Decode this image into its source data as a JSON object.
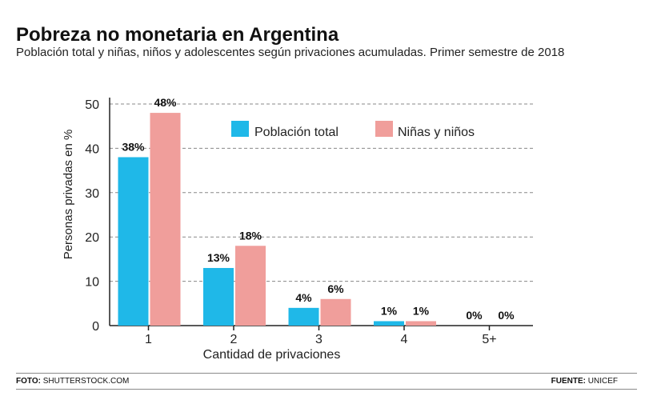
{
  "title": "Pobreza no monetaria en Argentina",
  "subtitle": "Población total y niñas, niños y adolescentes según privaciones acumuladas. Primer semestre de 2018",
  "colors": {
    "poblacion_total": "#1fb8e8",
    "ninas_ninos": "#f09e9b",
    "grid": "#888888",
    "axis": "#222222"
  },
  "chart_data": {
    "type": "bar",
    "categories": [
      "1",
      "2",
      "3",
      "4",
      "5+"
    ],
    "series": [
      {
        "name": "Población total",
        "values": [
          38,
          13,
          4,
          1,
          0
        ],
        "labels": [
          "38%",
          "13%",
          "4%",
          "1%",
          "0%"
        ]
      },
      {
        "name": "Niñas y niños",
        "values": [
          48,
          18,
          6,
          1,
          0
        ],
        "labels": [
          "48%",
          "18%",
          "6%",
          "1%",
          "0%"
        ]
      }
    ],
    "xlabel": "Cantidad de privaciones",
    "ylabel": "Personas privadas en %",
    "ylim": [
      0,
      50
    ],
    "yticks": [
      0,
      10,
      20,
      30,
      40,
      50
    ],
    "grid": true,
    "legend_position": "top-center"
  },
  "footer": {
    "photo_label": "FOTO:",
    "photo_value": "SHUTTERSTOCK.COM",
    "source_label": "FUENTE:",
    "source_value": "UNICEF"
  }
}
